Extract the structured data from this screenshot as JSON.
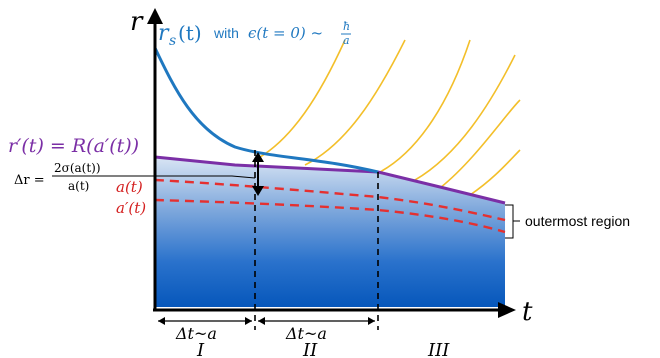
{
  "axes": {
    "y_label": "r",
    "x_label": "t"
  },
  "labels": {
    "rs_main": "r",
    "rs_sub": "s",
    "rs_arg": "(t)",
    "rs_with": "with",
    "rs_eps": "ϵ(t = 0) ~",
    "rs_frac_num": "ħ",
    "rs_frac_den": "a",
    "rprime": "r′(t) = R(a′(t))",
    "delta_r_lhs": "Δr =",
    "delta_r_num": "2σ(a(t))",
    "delta_r_den": "a(t)",
    "a_t": "a(t)",
    "a_prime_t": "a′(t)",
    "outermost": "outermost region",
    "interval_1": "Δt~a",
    "interval_2": "Δt~a",
    "region_1": "I",
    "region_2": "II",
    "region_3": "III"
  },
  "colors": {
    "blue_curve": "#1f78c0",
    "purple_curve": "#7b2fa6",
    "red_dashed": "#e53030",
    "yellow_curves": "#f3bf2a",
    "fill_top": "#d6e3f3",
    "fill_bottom": "#0a5cc0",
    "label_purple": "#7b2fa6",
    "label_red": "#d42020",
    "label_blue": "#1f78c0"
  }
}
